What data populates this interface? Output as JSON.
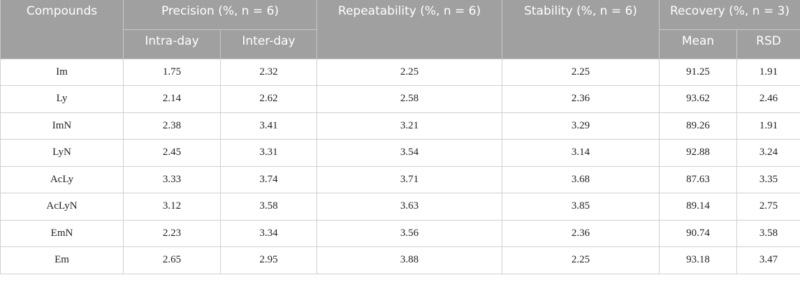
{
  "table": {
    "header": {
      "row1": [
        "Compounds",
        "Precision (%, n = 6)",
        "Repeatability (%, n = 6)",
        "Stability (%, n = 6)",
        "Recovery (%, n = 3)"
      ],
      "row2": [
        "Intra-day",
        "Inter-day",
        "Mean",
        "RSD"
      ]
    },
    "rows": [
      [
        "Im",
        "1.75",
        "2.32",
        "2.25",
        "2.25",
        "91.25",
        "1.91"
      ],
      [
        "Ly",
        "2.14",
        "2.62",
        "2.58",
        "2.36",
        "93.62",
        "2.46"
      ],
      [
        "ImN",
        "2.38",
        "3.41",
        "3.21",
        "3.29",
        "89.26",
        "1.91"
      ],
      [
        "LyN",
        "2.45",
        "3.31",
        "3.54",
        "3.14",
        "92.88",
        "3.24"
      ],
      [
        "AcLy",
        "3.33",
        "3.74",
        "3.71",
        "3.68",
        "87.63",
        "3.35"
      ],
      [
        "AcLyN",
        "3.12",
        "3.58",
        "3.63",
        "3.85",
        "89.14",
        "2.75"
      ],
      [
        "EmN",
        "2.23",
        "3.34",
        "3.56",
        "2.36",
        "90.74",
        "3.58"
      ],
      [
        "Em",
        "2.65",
        "2.95",
        "3.88",
        "2.25",
        "93.18",
        "3.47"
      ]
    ]
  }
}
